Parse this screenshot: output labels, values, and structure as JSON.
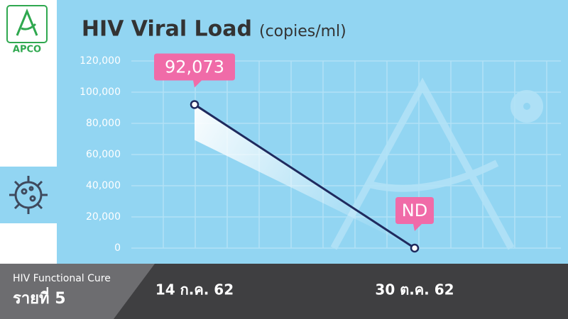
{
  "logo": {
    "text": "APCO"
  },
  "footer": {
    "program": "HIV Functional Cure",
    "case": "รายที่ 5"
  },
  "chart_data": {
    "type": "line",
    "title": "HIV Viral Load",
    "subtitle": "(copies/ml)",
    "categories": [
      "14 ก.ค. 62",
      "30 ต.ค. 62"
    ],
    "series": [
      {
        "name": "HIV Viral Load",
        "color": "#1f2a5e",
        "values": [
          92073,
          0
        ],
        "value_labels": [
          "92,073",
          "ND"
        ]
      }
    ],
    "ylim": [
      0,
      120000
    ],
    "yticks": [
      0,
      {
        "value": 20000,
        "label": "20,000"
      },
      {
        "value": 40000,
        "label": "40,000"
      },
      {
        "value": 60000,
        "label": "60,000"
      },
      {
        "value": 80000,
        "label": "80,000"
      },
      {
        "value": 100000,
        "label": "100,000"
      },
      {
        "value": 120000,
        "label": "120,000"
      }
    ],
    "grid": true,
    "label_color": "#f06ba8"
  }
}
